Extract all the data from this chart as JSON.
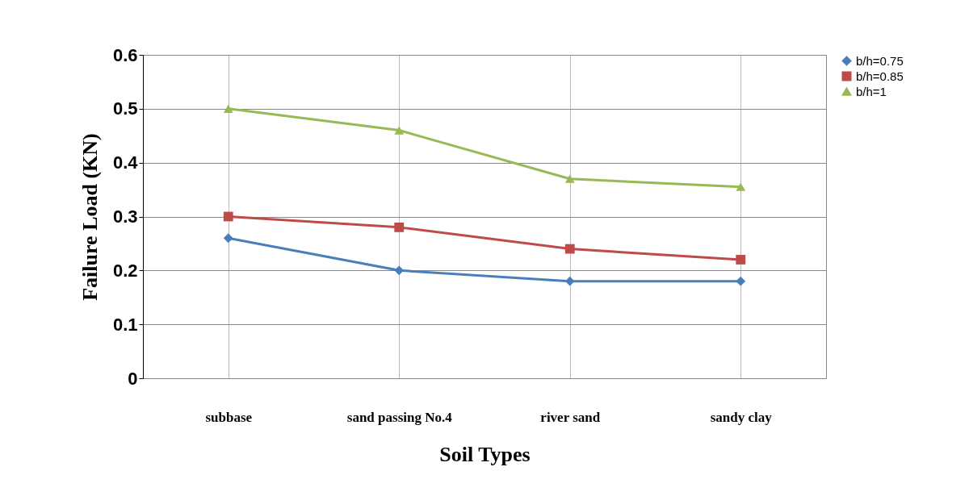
{
  "chart_data": {
    "type": "line",
    "xlabel": "Soil Types",
    "ylabel": "Failure Load (KN)",
    "categories": [
      "subbase",
      "sand passing No.4",
      "river sand",
      "sandy clay"
    ],
    "series": [
      {
        "name": "b/h=0.75",
        "color": "#4a7ebb",
        "marker": "diamond",
        "values": [
          0.26,
          0.2,
          0.18,
          0.18
        ]
      },
      {
        "name": "b/h=0.85",
        "color": "#be4b48",
        "marker": "square",
        "values": [
          0.3,
          0.28,
          0.24,
          0.22
        ]
      },
      {
        "name": "b/h=1",
        "color": "#98b954",
        "marker": "triangle",
        "values": [
          0.5,
          0.46,
          0.37,
          0.355
        ]
      }
    ],
    "ylim": [
      0,
      0.6
    ],
    "yticks": [
      0,
      0.1,
      0.2,
      0.3,
      0.4,
      0.5,
      0.6
    ],
    "grid": true,
    "legend": "right",
    "line_style": "solid"
  }
}
